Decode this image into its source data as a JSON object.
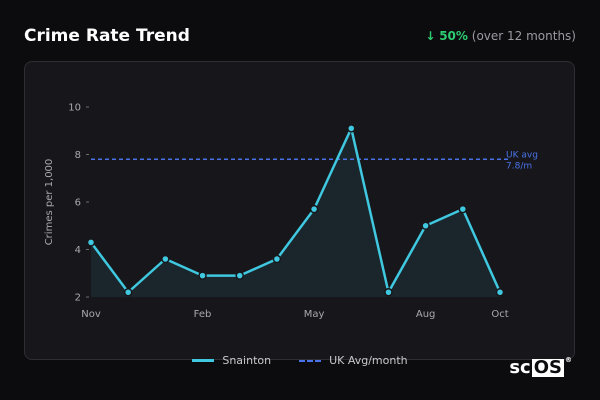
{
  "header": {
    "title": "Crime Rate Trend",
    "change_arrow": "↓",
    "change_pct": "50%",
    "change_note": "(over 12 months)"
  },
  "chart_data": {
    "type": "line",
    "ylabel": "Crimes per 1,000",
    "ylim": [
      2,
      10
    ],
    "yticks": [
      2,
      4,
      6,
      8,
      10
    ],
    "x_labels": [
      "Nov",
      "",
      "",
      "Feb",
      "",
      "",
      "May",
      "",
      "",
      "Aug",
      "",
      "Oct"
    ],
    "series": [
      {
        "name": "Snainton",
        "color": "#3fc8e0",
        "values": [
          4.3,
          2.2,
          3.6,
          2.9,
          2.9,
          3.6,
          5.7,
          9.1,
          2.2,
          5.0,
          5.7,
          2.2
        ]
      }
    ],
    "reference": {
      "name": "UK Avg/month",
      "value": 7.8,
      "label_line1": "UK avg",
      "label_line2": "7.8/m",
      "color": "#4a72e8"
    },
    "legend_placement": "bottom"
  },
  "legend": {
    "series_label": "Snainton",
    "reference_label": "UK Avg/month"
  },
  "logo": {
    "text_plain": "sc",
    "text_boxed": "OS",
    "mark": "®"
  }
}
